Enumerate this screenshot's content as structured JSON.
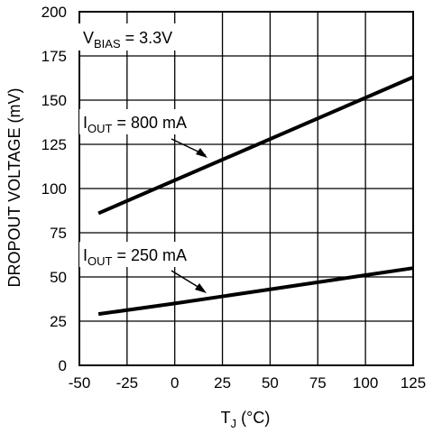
{
  "chart_data": {
    "type": "line",
    "title": "",
    "xlabel_main": "T",
    "xlabel_sub": "J",
    "xlabel_unit": " (°C)",
    "ylabel": "DROPOUT VOLTAGE (mV)",
    "xlim": [
      -50,
      125
    ],
    "ylim": [
      0,
      200
    ],
    "x_ticks": [
      "-50",
      "-25",
      "0",
      "25",
      "50",
      "75",
      "100",
      "125"
    ],
    "y_ticks": [
      "0",
      "25",
      "50",
      "75",
      "100",
      "125",
      "150",
      "175",
      "200"
    ],
    "grid": true,
    "legend": "none",
    "series": [
      {
        "name": "I_OUT = 800 mA",
        "x": [
          -40,
          125
        ],
        "y": [
          86,
          163
        ]
      },
      {
        "name": "I_OUT = 250 mA",
        "x": [
          -40,
          0,
          25,
          50,
          75,
          100,
          125
        ],
        "y": [
          29,
          35,
          39,
          43,
          47,
          51,
          55
        ]
      }
    ],
    "annotations": {
      "bias": {
        "main": "V",
        "sub": "BIAS",
        "rest": " = 3.3V"
      },
      "label_800": {
        "main": "I",
        "sub": "OUT",
        "rest": " = 800 mA"
      },
      "label_250": {
        "main": "I",
        "sub": "OUT",
        "rest": " = 250 mA"
      }
    }
  }
}
